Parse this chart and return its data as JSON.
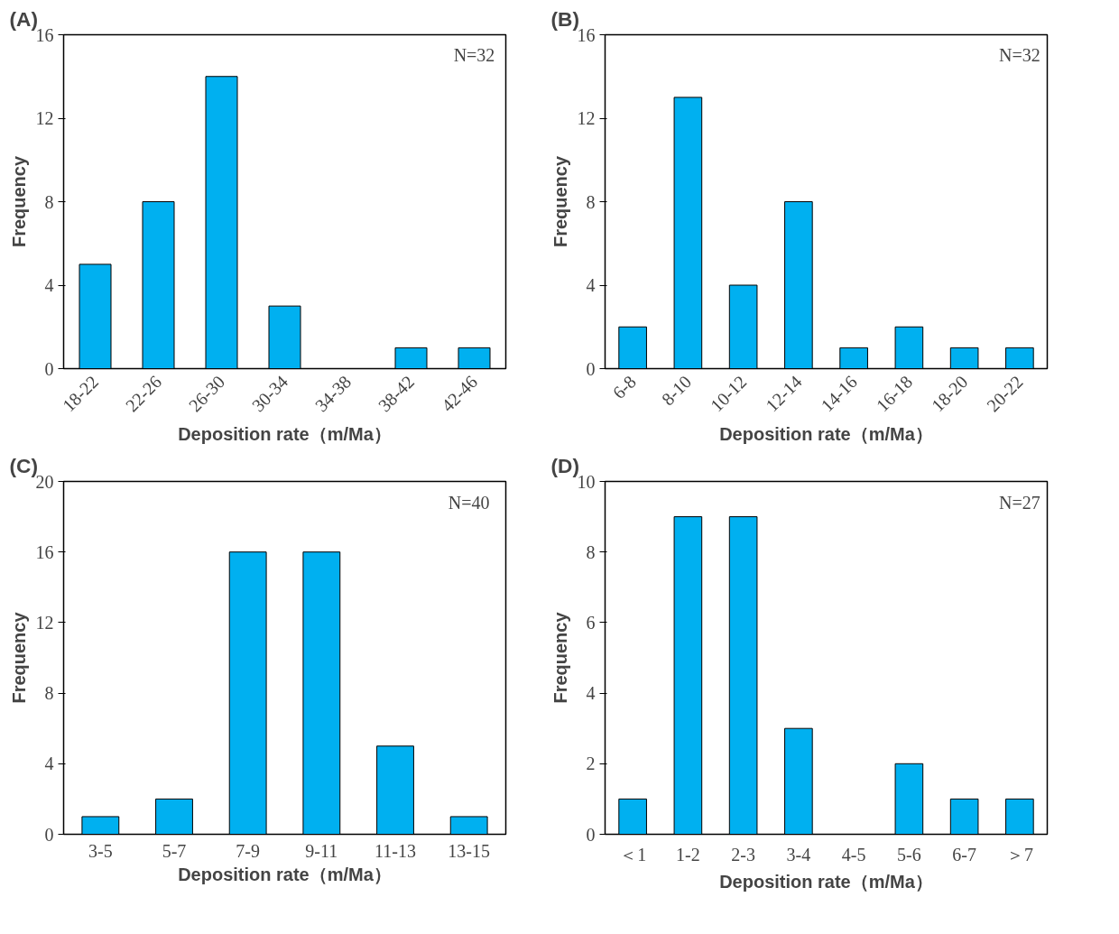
{
  "chart_data": [
    {
      "type": "bar",
      "title": "(A)",
      "xlabel": "Deposition rate（m/Ma）",
      "ylabel": "Frequency",
      "categories": [
        "18-22",
        "22-26",
        "26-30",
        "30-34",
        "34-38",
        "38-42",
        "42-46"
      ],
      "values": [
        5,
        8,
        14,
        3,
        0,
        1,
        1
      ],
      "color": "#00b0f0",
      "ylim": [
        0,
        16
      ],
      "yticks": [
        0,
        4,
        8,
        12,
        16
      ],
      "grid": false,
      "annotations": [
        "N=32"
      ]
    },
    {
      "type": "bar",
      "title": "(B)",
      "xlabel": "Deposition rate（m/Ma）",
      "ylabel": "Frequency",
      "categories": [
        "6-8",
        "8-10",
        "10-12",
        "12-14",
        "14-16",
        "16-18",
        "18-20",
        "20-22"
      ],
      "values": [
        2,
        13,
        4,
        8,
        1,
        2,
        1,
        1
      ],
      "color": "#00b0f0",
      "ylim": [
        0,
        16
      ],
      "yticks": [
        0,
        4,
        8,
        12,
        16
      ],
      "grid": false,
      "annotations": [
        "N=32"
      ]
    },
    {
      "type": "bar",
      "title": "(C)",
      "xlabel": "Deposition rate（m/Ma）",
      "ylabel": "Frequency",
      "categories": [
        "3-5",
        "5-7",
        "7-9",
        "9-11",
        "11-13",
        "13-15"
      ],
      "values": [
        1,
        2,
        16,
        16,
        5,
        1
      ],
      "color": "#00b0f0",
      "ylim": [
        0,
        20
      ],
      "yticks": [
        0,
        4,
        8,
        12,
        16,
        20
      ],
      "grid": false,
      "annotations": [
        "N=40"
      ]
    },
    {
      "type": "bar",
      "title": "(D)",
      "xlabel": "Deposition rate（m/Ma）",
      "ylabel": "Frequency",
      "categories": [
        "＜1",
        "1-2",
        "2-3",
        "3-4",
        "4-5",
        "5-6",
        "6-7",
        "＞7"
      ],
      "values": [
        1,
        9,
        9,
        3,
        0,
        2,
        1,
        1
      ],
      "color": "#00b0f0",
      "ylim": [
        0,
        10
      ],
      "yticks": [
        0,
        2,
        4,
        6,
        8,
        10
      ],
      "grid": false,
      "annotations": [
        "N=27"
      ]
    }
  ]
}
